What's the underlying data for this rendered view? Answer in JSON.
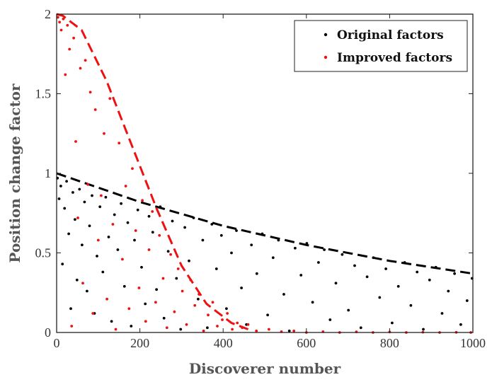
{
  "chart_data": {
    "type": "scatter",
    "xlabel": "Discoverer number",
    "ylabel": "Position change  factor",
    "xlim": [
      0,
      1000
    ],
    "ylim": [
      0,
      2
    ],
    "xticks": [
      0,
      200,
      400,
      600,
      800,
      1000
    ],
    "yticks": [
      0,
      0.5,
      1,
      1.5,
      2
    ],
    "xtick_labels": [
      "0",
      "200",
      "400",
      "600",
      "800",
      "1000"
    ],
    "ytick_labels": [
      "0",
      "0.5",
      "1",
      "1.5",
      "2"
    ],
    "grid": false,
    "legend_position": "top-right",
    "series": [
      {
        "name": "Original factors",
        "color": "#000000",
        "envelope": {
          "x": [
            0,
            200,
            400,
            600,
            800,
            1000
          ],
          "y": [
            1.0,
            0.82,
            0.67,
            0.55,
            0.45,
            0.37
          ]
        },
        "points_x": [
          2,
          6,
          10,
          14,
          19,
          24,
          29,
          34,
          39,
          44,
          49,
          55,
          61,
          67,
          73,
          79,
          85,
          91,
          97,
          104,
          111,
          118,
          125,
          132,
          139,
          147,
          155,
          163,
          171,
          179,
          187,
          195,
          204,
          213,
          222,
          231,
          240,
          249,
          258,
          268,
          278,
          288,
          298,
          308,
          318,
          329,
          340,
          351,
          362,
          373,
          384,
          396,
          408,
          420,
          432,
          444,
          456,
          468,
          481,
          494,
          507,
          520,
          533,
          546,
          559,
          573,
          587,
          601,
          615,
          629,
          643,
          657,
          671,
          686,
          701,
          716,
          731,
          746,
          761,
          776,
          791,
          806,
          821,
          836,
          851,
          866,
          881,
          896,
          911,
          926,
          941,
          956,
          971,
          986,
          998
        ],
        "points_y": [
          0.97,
          0.84,
          0.92,
          0.43,
          0.78,
          0.95,
          0.62,
          0.15,
          0.88,
          0.71,
          0.33,
          0.9,
          0.55,
          0.82,
          0.26,
          0.67,
          0.86,
          0.12,
          0.48,
          0.79,
          0.38,
          0.85,
          0.6,
          0.07,
          0.74,
          0.52,
          0.81,
          0.29,
          0.69,
          0.04,
          0.58,
          0.77,
          0.41,
          0.18,
          0.73,
          0.63,
          0.27,
          0.79,
          0.09,
          0.51,
          0.7,
          0.34,
          0.02,
          0.66,
          0.45,
          0.72,
          0.21,
          0.58,
          0.03,
          0.68,
          0.4,
          0.61,
          0.15,
          0.5,
          0.64,
          0.28,
          0.05,
          0.55,
          0.37,
          0.62,
          0.11,
          0.47,
          0.58,
          0.24,
          0.01,
          0.53,
          0.36,
          0.56,
          0.19,
          0.44,
          0.52,
          0.08,
          0.31,
          0.49,
          0.14,
          0.42,
          0.03,
          0.35,
          0.47,
          0.22,
          0.4,
          0.06,
          0.29,
          0.44,
          0.17,
          0.38,
          0.02,
          0.33,
          0.41,
          0.12,
          0.26,
          0.37,
          0.05,
          0.2,
          0.34
        ]
      },
      {
        "name": "Improved factors",
        "color": "#ee1111",
        "envelope": {
          "x": [
            0,
            15,
            60,
            120,
            180,
            240,
            300,
            360,
            420,
            460
          ],
          "y": [
            2.0,
            1.99,
            1.9,
            1.58,
            1.18,
            0.78,
            0.42,
            0.18,
            0.06,
            0.02
          ]
        },
        "points_x": [
          3,
          7,
          11,
          16,
          21,
          26,
          31,
          36,
          41,
          46,
          51,
          57,
          63,
          69,
          75,
          81,
          87,
          93,
          100,
          107,
          114,
          121,
          128,
          135,
          142,
          150,
          158,
          166,
          174,
          182,
          190,
          198,
          206,
          214,
          222,
          230,
          238,
          247,
          256,
          265,
          274,
          283,
          292,
          302,
          312,
          322,
          332,
          342,
          353,
          364,
          375,
          386,
          398,
          410,
          422,
          434,
          446,
          460,
          480,
          510,
          540,
          570,
          600,
          640,
          680,
          720,
          760,
          800,
          840,
          880,
          920,
          960,
          995
        ],
        "points_y": [
          1.98,
          1.95,
          1.9,
          1.97,
          1.62,
          1.93,
          1.78,
          0.04,
          1.85,
          1.2,
          0.72,
          1.66,
          0.31,
          1.71,
          0.93,
          1.51,
          0.12,
          1.4,
          0.58,
          0.86,
          1.25,
          0.21,
          1.47,
          0.68,
          0.02,
          1.19,
          0.46,
          0.92,
          0.15,
          1.03,
          0.64,
          0.28,
          0.83,
          0.07,
          0.52,
          0.76,
          0.19,
          0.61,
          0.34,
          0.03,
          0.49,
          0.13,
          0.4,
          0.26,
          0.05,
          0.33,
          0.17,
          0.24,
          0.01,
          0.11,
          0.19,
          0.04,
          0.08,
          0.12,
          0.02,
          0.06,
          0.03,
          0.05,
          0.01,
          0.02,
          0.005,
          0.01,
          0.0,
          0.005,
          0.0,
          0.004,
          0.0,
          0.003,
          0.0,
          0.002,
          0.0,
          0.001,
          0.0
        ]
      }
    ]
  }
}
